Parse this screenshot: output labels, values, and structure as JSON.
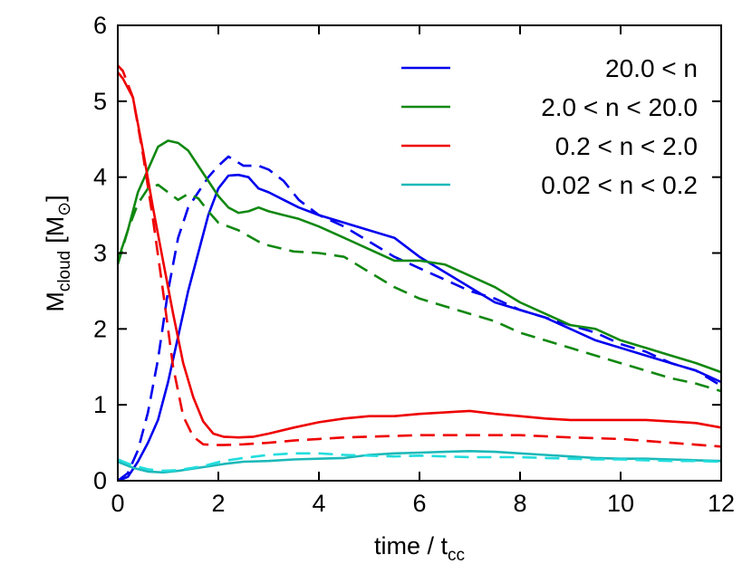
{
  "chart_data": {
    "type": "line",
    "title": "",
    "xlabel": "time / t",
    "xlabel_sub": "cc",
    "ylabel": "M",
    "ylabel_sub": "cloud",
    "ylabel_unit": "[M",
    "ylabel_unit_symbol": "⊙",
    "ylabel_unit_close": "]",
    "xlim": [
      0,
      12
    ],
    "ylim": [
      0,
      6
    ],
    "xticks": [
      0,
      2,
      4,
      6,
      8,
      10,
      12
    ],
    "yticks": [
      0,
      1,
      2,
      3,
      4,
      5,
      6
    ],
    "xtick_labels": [
      "0",
      "2",
      "4",
      "6",
      "8",
      "10",
      "12"
    ],
    "ytick_labels": [
      "0",
      "1",
      "2",
      "3",
      "4",
      "5",
      "6"
    ],
    "grid": false,
    "legend_position": "top-right",
    "series": [
      {
        "name": "20.0 < n",
        "color": "#0000ee",
        "style": "solid",
        "x": [
          0,
          0.2,
          0.4,
          0.6,
          0.8,
          1.0,
          1.2,
          1.4,
          1.6,
          1.8,
          2.0,
          2.2,
          2.4,
          2.6,
          2.8,
          3.0,
          3.3,
          3.6,
          4.0,
          4.5,
          5.0,
          5.5,
          6.0,
          6.5,
          7.0,
          7.5,
          8.0,
          8.5,
          9.0,
          9.5,
          10.0,
          10.5,
          11.0,
          11.5,
          12.0
        ],
        "y": [
          0.0,
          0.05,
          0.25,
          0.5,
          0.8,
          1.3,
          1.9,
          2.5,
          3.0,
          3.5,
          3.85,
          4.02,
          4.03,
          4.0,
          3.85,
          3.8,
          3.7,
          3.6,
          3.5,
          3.4,
          3.3,
          3.2,
          2.95,
          2.75,
          2.55,
          2.35,
          2.25,
          2.15,
          2.0,
          1.85,
          1.75,
          1.65,
          1.55,
          1.45,
          1.3
        ]
      },
      {
        "name": "20.0 < n (dashed)",
        "color": "#0000ee",
        "style": "dashed",
        "x": [
          0,
          0.2,
          0.4,
          0.6,
          0.8,
          1.0,
          1.2,
          1.4,
          1.6,
          1.8,
          2.0,
          2.2,
          2.5,
          2.8,
          3.0,
          3.3,
          3.6,
          4.0,
          4.5,
          5.0,
          5.5,
          6.0,
          6.5,
          7.0,
          7.5,
          8.0,
          8.5,
          9.0,
          9.5,
          10.0,
          10.5,
          11.0,
          11.5,
          12.0
        ],
        "y": [
          0.0,
          0.1,
          0.4,
          0.9,
          1.6,
          2.5,
          3.2,
          3.6,
          3.8,
          4.0,
          4.15,
          4.27,
          4.15,
          4.15,
          4.1,
          3.95,
          3.7,
          3.5,
          3.35,
          3.15,
          2.95,
          2.8,
          2.65,
          2.5,
          2.4,
          2.25,
          2.15,
          2.05,
          1.95,
          1.8,
          1.7,
          1.55,
          1.45,
          1.25
        ]
      },
      {
        "name": "2.0 < n < 20.0",
        "color": "#118811",
        "style": "solid",
        "x": [
          0,
          0.2,
          0.4,
          0.6,
          0.8,
          1.0,
          1.2,
          1.4,
          1.6,
          1.8,
          2.0,
          2.2,
          2.4,
          2.6,
          2.8,
          3.0,
          3.3,
          3.6,
          4.0,
          4.5,
          5.0,
          5.5,
          6.0,
          6.5,
          7.0,
          7.5,
          8.0,
          8.5,
          9.0,
          9.5,
          10.0,
          10.5,
          11.0,
          11.5,
          12.0
        ],
        "y": [
          2.9,
          3.3,
          3.8,
          4.1,
          4.4,
          4.48,
          4.45,
          4.35,
          4.15,
          3.95,
          3.75,
          3.6,
          3.53,
          3.55,
          3.6,
          3.55,
          3.5,
          3.45,
          3.35,
          3.2,
          3.05,
          2.9,
          2.9,
          2.85,
          2.7,
          2.55,
          2.35,
          2.2,
          2.05,
          2.0,
          1.85,
          1.75,
          1.65,
          1.55,
          1.43
        ]
      },
      {
        "name": "2.0 < n < 20.0 (dashed)",
        "color": "#118811",
        "style": "dashed",
        "x": [
          0,
          0.2,
          0.4,
          0.6,
          0.8,
          1.0,
          1.2,
          1.4,
          1.6,
          1.8,
          2.0,
          2.4,
          2.8,
          3.0,
          3.5,
          4.0,
          4.5,
          5.0,
          5.5,
          6.0,
          6.5,
          7.0,
          7.5,
          8.0,
          8.5,
          9.0,
          9.5,
          10.0,
          10.5,
          11.0,
          11.5,
          12.0
        ],
        "y": [
          2.85,
          3.3,
          3.65,
          3.85,
          3.9,
          3.8,
          3.7,
          3.78,
          3.72,
          3.55,
          3.4,
          3.3,
          3.15,
          3.1,
          3.02,
          3.0,
          2.95,
          2.75,
          2.55,
          2.4,
          2.3,
          2.2,
          2.1,
          1.95,
          1.85,
          1.75,
          1.65,
          1.55,
          1.45,
          1.35,
          1.28,
          1.18
        ]
      },
      {
        "name": "0.2 < n < 2.0",
        "color": "#ee0000",
        "style": "solid",
        "x": [
          0,
          0.1,
          0.3,
          0.5,
          0.7,
          0.9,
          1.1,
          1.3,
          1.5,
          1.7,
          1.9,
          2.1,
          2.4,
          2.7,
          3.0,
          3.5,
          4.0,
          4.5,
          5.0,
          5.5,
          6.0,
          6.5,
          7.0,
          7.5,
          8.0,
          8.5,
          9.0,
          9.5,
          10.0,
          10.5,
          11.0,
          11.5,
          12.0
        ],
        "y": [
          5.38,
          5.3,
          5.05,
          4.35,
          3.6,
          2.9,
          2.2,
          1.55,
          1.1,
          0.78,
          0.62,
          0.58,
          0.57,
          0.58,
          0.62,
          0.7,
          0.77,
          0.82,
          0.85,
          0.85,
          0.88,
          0.9,
          0.92,
          0.88,
          0.85,
          0.82,
          0.8,
          0.8,
          0.8,
          0.8,
          0.78,
          0.76,
          0.7
        ]
      },
      {
        "name": "0.2 < n < 2.0 (dashed)",
        "color": "#ee0000",
        "style": "dashed",
        "x": [
          0,
          0.1,
          0.3,
          0.5,
          0.7,
          0.9,
          1.1,
          1.3,
          1.5,
          1.7,
          1.9,
          2.1,
          2.5,
          3.0,
          3.5,
          4.0,
          4.5,
          5.0,
          6.0,
          7.0,
          8.0,
          9.0,
          10.0,
          11.0,
          12.0
        ],
        "y": [
          5.47,
          5.4,
          5.05,
          4.3,
          3.45,
          2.5,
          1.5,
          0.85,
          0.58,
          0.48,
          0.47,
          0.47,
          0.48,
          0.5,
          0.53,
          0.55,
          0.57,
          0.58,
          0.6,
          0.6,
          0.6,
          0.57,
          0.55,
          0.5,
          0.45
        ]
      },
      {
        "name": "0.02 < n < 0.2",
        "color": "#1cb8b8",
        "style": "solid",
        "x": [
          0,
          0.3,
          0.6,
          0.9,
          1.2,
          1.5,
          1.8,
          2.1,
          2.5,
          3.0,
          3.5,
          4.0,
          4.5,
          5.0,
          5.5,
          6.0,
          6.5,
          7.0,
          7.5,
          8.0,
          8.5,
          9.0,
          9.5,
          10.0,
          10.5,
          11.0,
          11.5,
          12.0
        ],
        "y": [
          0.25,
          0.17,
          0.12,
          0.11,
          0.13,
          0.16,
          0.19,
          0.22,
          0.25,
          0.26,
          0.28,
          0.29,
          0.3,
          0.34,
          0.36,
          0.37,
          0.38,
          0.39,
          0.38,
          0.36,
          0.34,
          0.32,
          0.3,
          0.29,
          0.29,
          0.28,
          0.27,
          0.26
        ]
      },
      {
        "name": "0.02 < n < 0.2 (dashed)",
        "color": "#22dddd",
        "style": "dashed",
        "x": [
          0,
          0.3,
          0.6,
          0.9,
          1.2,
          1.5,
          1.8,
          2.1,
          2.5,
          3.0,
          3.5,
          4.0,
          4.5,
          5.0,
          5.5,
          6.0,
          6.5,
          7.0,
          7.5,
          8.0,
          8.5,
          9.0,
          9.5,
          10.0,
          10.5,
          11.0,
          11.5,
          12.0
        ],
        "y": [
          0.28,
          0.2,
          0.15,
          0.13,
          0.14,
          0.17,
          0.21,
          0.26,
          0.3,
          0.34,
          0.36,
          0.36,
          0.34,
          0.33,
          0.32,
          0.33,
          0.32,
          0.31,
          0.31,
          0.31,
          0.3,
          0.29,
          0.28,
          0.28,
          0.27,
          0.26,
          0.26,
          0.25
        ]
      }
    ],
    "legend": [
      {
        "label": "20.0 < n",
        "color": "#0000ee"
      },
      {
        "label": "2.0 < n < 20.0",
        "color": "#118811"
      },
      {
        "label": "0.2 < n < 2.0",
        "color": "#ee0000"
      },
      {
        "label": "0.02 < n < 0.2",
        "color": "#1cb8b8"
      }
    ]
  }
}
